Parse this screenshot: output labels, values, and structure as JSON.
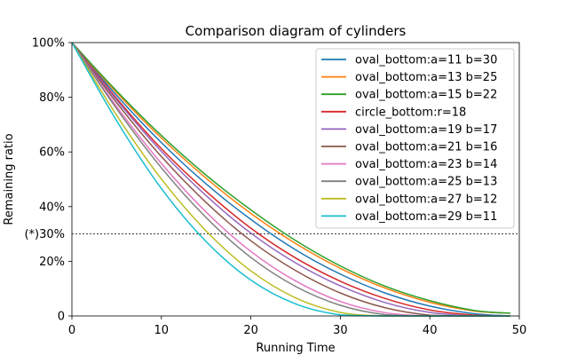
{
  "chart_data": {
    "type": "line",
    "title": "Comparison diagram of cylinders",
    "xlabel": "Running Time",
    "ylabel": "Remaining ratio",
    "xlim": [
      0,
      50
    ],
    "ylim": [
      0,
      100
    ],
    "xticks": [
      0,
      10,
      20,
      30,
      40,
      50
    ],
    "xtick_labels": [
      "0",
      "10",
      "20",
      "30",
      "40",
      "50"
    ],
    "yticks": [
      0,
      20,
      40,
      60,
      80,
      100
    ],
    "ytick_labels": [
      "0",
      "20%",
      "40%",
      "60%",
      "80%",
      "100%"
    ],
    "reference_line": {
      "y": 30,
      "label": "(*)30%",
      "style": "dashed"
    },
    "grid": false,
    "legend_position": "top-right",
    "x": [
      0,
      5,
      10,
      15,
      20,
      25,
      30,
      35,
      40,
      45,
      49
    ],
    "series": [
      {
        "name": "oval_bottom:a=11 b=30",
        "color": "#1f77b4",
        "values": [
          100,
          80.7,
          63.4,
          48.3,
          35.3,
          24.2,
          15.3,
          8.4,
          3.6,
          0.8,
          0
        ]
      },
      {
        "name": "oval_bottom:a=13 b=25",
        "color": "#ff7f0e",
        "values": [
          100,
          81.7,
          65.1,
          50.4,
          37.5,
          26.5,
          17.4,
          10.2,
          5.0,
          1.8,
          1.0
        ]
      },
      {
        "name": "oval_bottom:a=15 b=22",
        "color": "#2ca02c",
        "values": [
          100,
          82.3,
          66.0,
          51.5,
          38.8,
          27.6,
          18.3,
          10.9,
          5.6,
          2.0,
          1.0
        ]
      },
      {
        "name": "circle_bottom:r=18",
        "color": "#d62728",
        "values": [
          100,
          79.6,
          61.2,
          45.6,
          32.1,
          21.2,
          12.7,
          6.4,
          2.2,
          0.3,
          0
        ]
      },
      {
        "name": "oval_bottom:a=19 b=17",
        "color": "#9467bd",
        "values": [
          100,
          79.0,
          60.2,
          44.0,
          30.3,
          19.4,
          11.0,
          4.9,
          1.3,
          0,
          0
        ]
      },
      {
        "name": "oval_bottom:a=21 b=16",
        "color": "#8c564b",
        "values": [
          100,
          78.0,
          58.3,
          41.5,
          27.5,
          16.6,
          8.4,
          3.0,
          0.3,
          0,
          0
        ]
      },
      {
        "name": "oval_bottom:a=23 b=14",
        "color": "#e377c2",
        "values": [
          100,
          76.6,
          55.8,
          38.0,
          23.6,
          12.8,
          5.3,
          1.2,
          0,
          0,
          0
        ]
      },
      {
        "name": "oval_bottom:a=25 b=13",
        "color": "#7f7f7f",
        "values": [
          100,
          75.8,
          54.2,
          36.0,
          21.4,
          10.8,
          3.9,
          0.5,
          0,
          0,
          0
        ]
      },
      {
        "name": "oval_bottom:a=27 b=12",
        "color": "#bcbd22",
        "values": [
          100,
          73.4,
          50.1,
          31.1,
          16.5,
          6.6,
          1.3,
          0,
          0,
          0,
          0
        ]
      },
      {
        "name": "oval_bottom:a=29 b=11",
        "color": "#17becf",
        "values": [
          100,
          71.4,
          46.6,
          27.2,
          13.1,
          4.4,
          0.4,
          0,
          0,
          0,
          0
        ]
      }
    ]
  }
}
